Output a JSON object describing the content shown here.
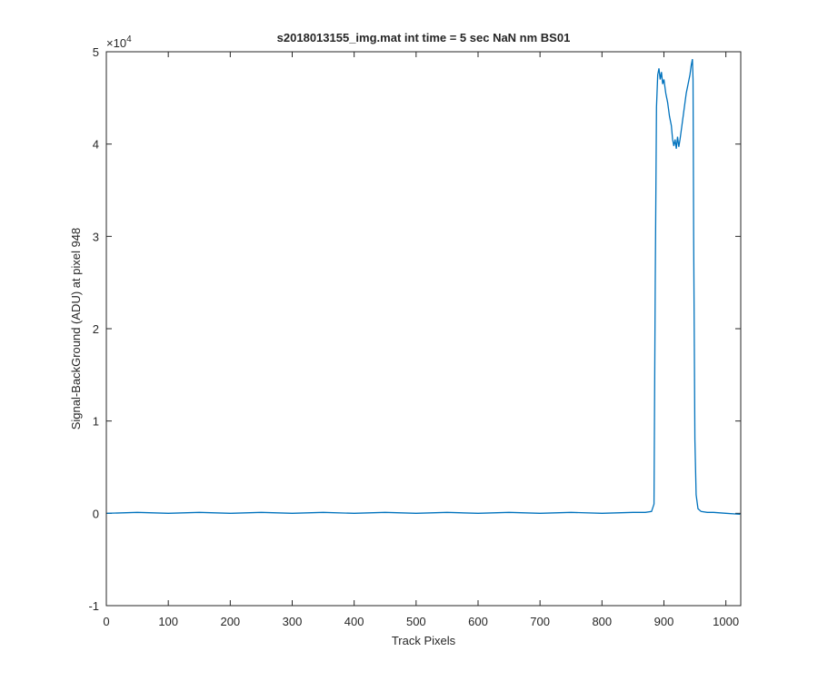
{
  "chart_data": {
    "type": "line",
    "title": "s2018013155_img.mat int time = 5 sec  NaN nm BS01",
    "x_label": "Track Pixels",
    "y_label": "Signal-BackGround (ADU) at pixel 948",
    "y_exponent": {
      "base": "×10",
      "power": "4"
    },
    "xlim": [
      0,
      1024
    ],
    "ylim": [
      -1,
      5
    ],
    "xticks": [
      0,
      100,
      200,
      300,
      400,
      500,
      600,
      700,
      800,
      900,
      1000
    ],
    "yticks": [
      -1,
      0,
      1,
      2,
      3,
      4,
      5
    ],
    "grid": false,
    "series": [
      {
        "color": "#0072bd",
        "x": [
          1,
          50,
          100,
          150,
          200,
          250,
          300,
          350,
          400,
          450,
          500,
          550,
          600,
          650,
          700,
          750,
          800,
          850,
          870,
          880,
          884,
          886,
          888,
          890,
          892,
          894,
          896,
          898,
          900,
          903,
          906,
          909,
          912,
          914,
          916,
          918,
          920,
          922,
          924,
          926,
          928,
          930,
          933,
          936,
          939,
          942,
          944,
          946,
          947,
          948,
          950,
          952,
          955,
          960,
          970,
          980,
          1000,
          1023
        ],
        "values": [
          0,
          0.01,
          0,
          0.01,
          0,
          0.01,
          0,
          0.01,
          0,
          0.01,
          0,
          0.01,
          0,
          0.01,
          0,
          0.01,
          0,
          0.01,
          0.01,
          0.02,
          0.1,
          2.5,
          4.4,
          4.75,
          4.82,
          4.7,
          4.78,
          4.65,
          4.7,
          4.55,
          4.45,
          4.3,
          4.2,
          4.05,
          3.98,
          4.05,
          3.95,
          4.08,
          3.97,
          4.05,
          4.15,
          4.25,
          4.4,
          4.55,
          4.65,
          4.75,
          4.85,
          4.92,
          4.7,
          3.0,
          0.8,
          0.2,
          0.05,
          0.02,
          0.01,
          0.01,
          0,
          -0.01
        ]
      }
    ]
  }
}
